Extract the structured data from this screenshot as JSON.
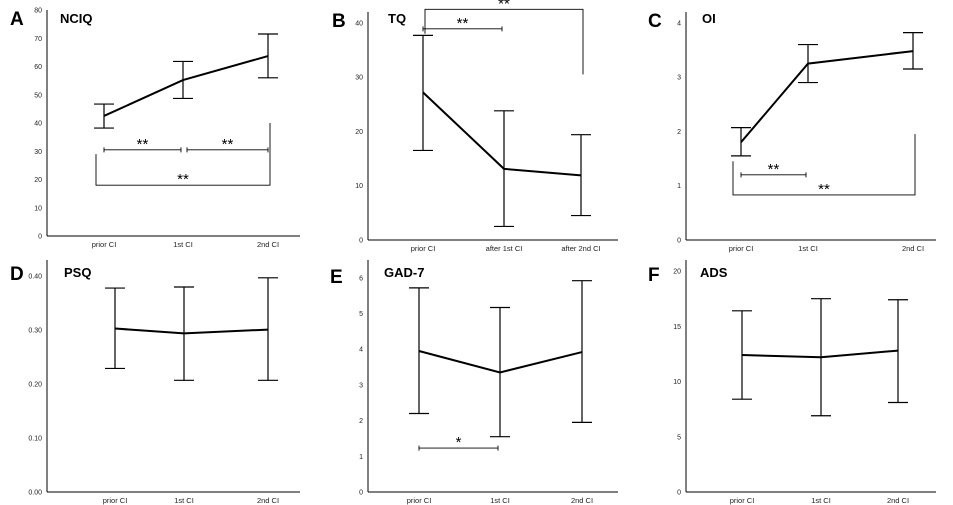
{
  "chart_data": [
    {
      "type": "line",
      "panel": "A",
      "title": "NCIQ",
      "categories": [
        "prior CI",
        "1st CI",
        "2nd CI"
      ],
      "values": [
        42.5,
        55.2,
        63.7
      ],
      "error_low": [
        38.2,
        48.7,
        56.0
      ],
      "error_high": [
        46.7,
        61.8,
        71.5
      ],
      "ylim": [
        0,
        80
      ],
      "yticks": [
        "0",
        "10",
        "20",
        "30",
        "40",
        "50",
        "60",
        "70",
        "80"
      ],
      "significance": [
        {
          "from": 0,
          "to": 1,
          "label": "**",
          "y": 30.5,
          "style": "ticks"
        },
        {
          "from": 1,
          "to": 2,
          "label": "**",
          "y": 30.5,
          "style": "ticks"
        },
        {
          "from": 0,
          "to": 2,
          "label": "**",
          "y": 18,
          "style": "bracket",
          "top_left": 29,
          "top_right": 40
        }
      ]
    },
    {
      "type": "line",
      "panel": "B",
      "title": "TQ",
      "categories": [
        "prior CI",
        "after 1st CI",
        "after 2nd CI"
      ],
      "values": [
        27.2,
        13.1,
        11.9
      ],
      "error_low": [
        16.5,
        2.5,
        4.5
      ],
      "error_high": [
        37.7,
        23.8,
        19.4
      ],
      "ylim": [
        0,
        42
      ],
      "yticks": [
        "0",
        "10",
        "20",
        "30",
        "40"
      ],
      "significance": [
        {
          "from": 0,
          "to": 1,
          "label": "**",
          "y": 38.9,
          "style": "ticks"
        },
        {
          "from": 0,
          "to": 2,
          "label": "**",
          "y": 42.5,
          "style": "bracket-down",
          "bottom_left": 38,
          "bottom_right": 30.5
        }
      ]
    },
    {
      "type": "line",
      "panel": "C",
      "title": "OI",
      "categories": [
        "prior CI",
        "1st CI",
        "2nd CI"
      ],
      "values": [
        1.8,
        3.25,
        3.48
      ],
      "error_low": [
        1.55,
        2.9,
        3.15
      ],
      "error_high": [
        2.07,
        3.6,
        3.82
      ],
      "ylim": [
        0,
        4.2
      ],
      "yticks": [
        "0",
        "1",
        "2",
        "3",
        "4"
      ],
      "significance": [
        {
          "from": 0,
          "to": 1,
          "label": "**",
          "y": 1.2,
          "style": "ticks"
        },
        {
          "from": 0,
          "to": 2,
          "label": "**",
          "y": 0.83,
          "style": "bracket",
          "top_left": 1.45,
          "top_right": 1.95
        }
      ]
    },
    {
      "type": "line",
      "panel": "D",
      "title": "PSQ",
      "categories": [
        "prior CI",
        "1st CI",
        "2nd CI"
      ],
      "values": [
        0.303,
        0.294,
        0.301
      ],
      "error_low": [
        0.229,
        0.207,
        0.207
      ],
      "error_high": [
        0.378,
        0.38,
        0.397
      ],
      "ylim": [
        0,
        0.43
      ],
      "yticks": [
        "0.00",
        "0.10",
        "0.20",
        "0.30",
        "0.40"
      ],
      "significance": []
    },
    {
      "type": "line",
      "panel": "E",
      "title": "GAD-7",
      "categories": [
        "prior CI",
        "1st CI",
        "2nd CI"
      ],
      "values": [
        3.95,
        3.35,
        3.92
      ],
      "error_low": [
        2.2,
        1.55,
        1.95
      ],
      "error_high": [
        5.72,
        5.17,
        5.92
      ],
      "ylim": [
        0,
        6.5
      ],
      "yticks": [
        "0",
        "1",
        "2",
        "3",
        "4",
        "5",
        "6"
      ],
      "significance": [
        {
          "from": 0,
          "to": 1,
          "label": "*",
          "y": 1.23,
          "style": "ticks"
        }
      ]
    },
    {
      "type": "line",
      "panel": "F",
      "title": "ADS",
      "categories": [
        "prior CI",
        "1st CI",
        "2nd CI"
      ],
      "values": [
        12.4,
        12.2,
        12.8
      ],
      "error_low": [
        8.4,
        6.9,
        8.1
      ],
      "error_high": [
        16.4,
        17.5,
        17.4
      ],
      "ylim": [
        0,
        21
      ],
      "yticks": [
        "0",
        "5",
        "10",
        "15",
        "20"
      ],
      "significance": []
    }
  ]
}
